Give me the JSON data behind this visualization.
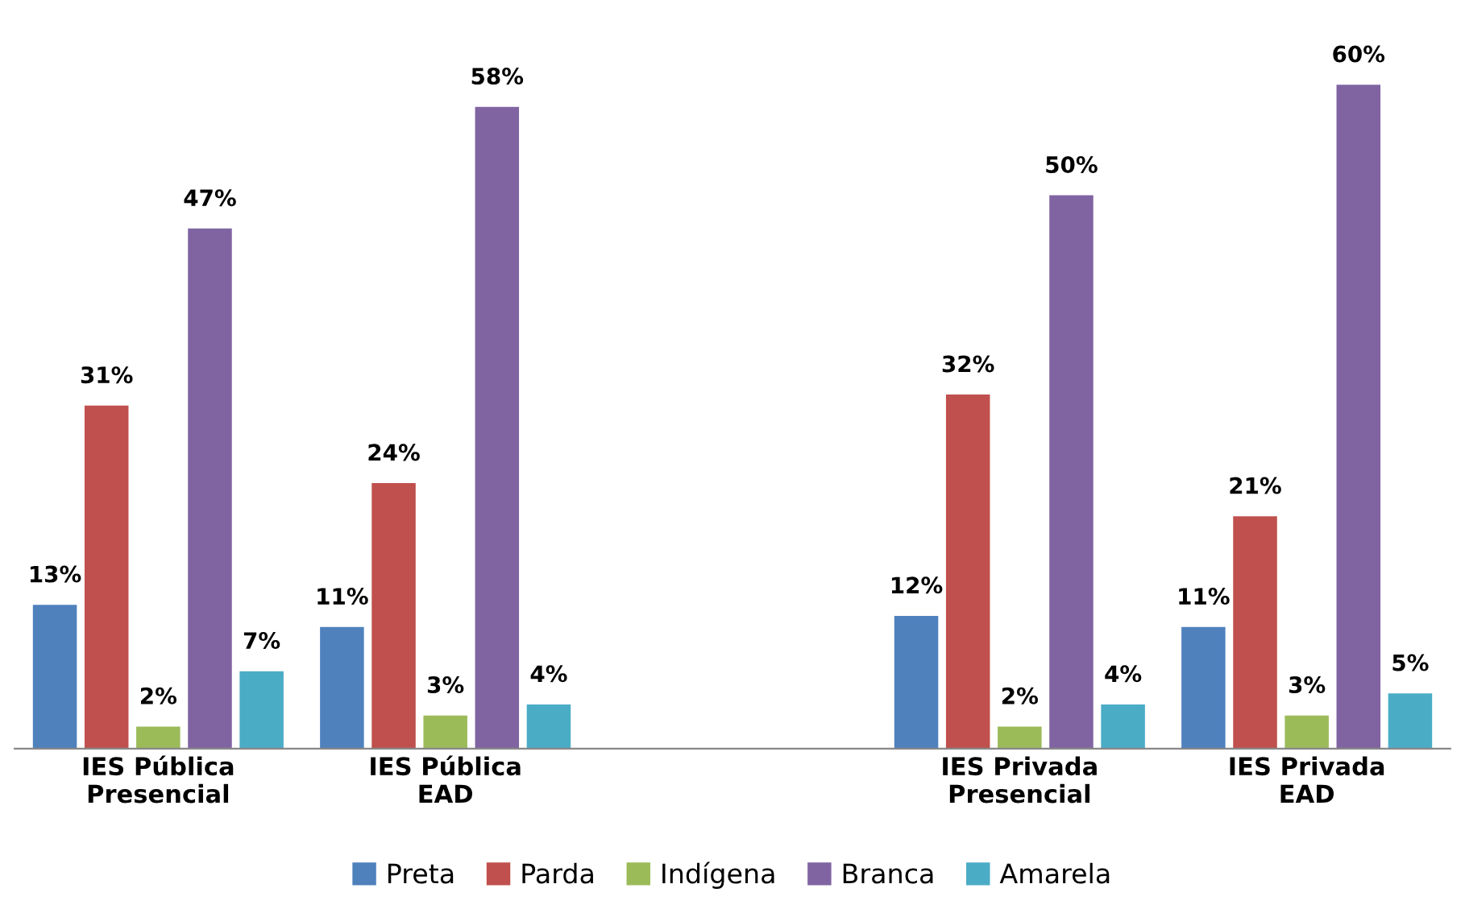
{
  "chart_data": {
    "type": "bar",
    "categories": [
      "IES Pública\nPresencial",
      "IES Pública\nEAD",
      null,
      "IES Privada\nPresencial",
      "IES Privada\nEAD"
    ],
    "series": [
      {
        "name": "Preta",
        "color": "#4f81bd",
        "values": [
          13,
          11,
          null,
          12,
          11
        ],
        "value_labels": [
          "13%",
          "11%",
          null,
          "12%",
          "11%"
        ]
      },
      {
        "name": "Parda",
        "color": "#c0504d",
        "values": [
          31,
          24,
          null,
          32,
          21
        ],
        "value_labels": [
          "31%",
          "24%",
          null,
          "32%",
          "21%"
        ]
      },
      {
        "name": "Indígena",
        "color": "#9bbb59",
        "values": [
          2,
          3,
          null,
          2,
          3
        ],
        "value_labels": [
          "2%",
          "3%",
          null,
          "2%",
          "3%"
        ]
      },
      {
        "name": "Branca",
        "color": "#8064a2",
        "values": [
          47,
          58,
          null,
          50,
          60
        ],
        "value_labels": [
          "47%",
          "58%",
          null,
          "50%",
          "60%"
        ]
      },
      {
        "name": "Amarela",
        "color": "#4bacc6",
        "values": [
          7,
          4,
          null,
          4,
          5
        ],
        "value_labels": [
          "7%",
          "4%",
          null,
          "4%",
          "5%"
        ]
      }
    ],
    "legend": "bottom",
    "grid": false
  }
}
